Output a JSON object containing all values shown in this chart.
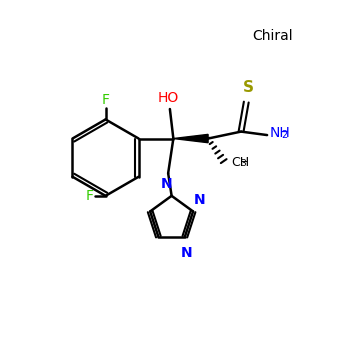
{
  "title": "",
  "bg_color": "#ffffff",
  "bond_color": "#000000",
  "F_color": "#33cc00",
  "O_color": "#ff0000",
  "N_color": "#0000ff",
  "S_color": "#999900",
  "NH2_color": "#0000ff",
  "chiral_color": "#000000",
  "label_chiral": "Chiral",
  "label_F": "F",
  "label_O": "HO",
  "label_S": "S",
  "label_NH2": "NH2",
  "label_CH3": "CH3",
  "label_N1": "N",
  "label_N2": "N",
  "label_N3": "N"
}
